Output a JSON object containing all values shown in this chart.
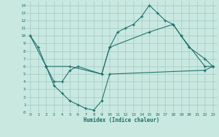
{
  "title": "",
  "xlabel": "Humidex (Indice chaleur)",
  "xlim": [
    -0.5,
    23.5
  ],
  "ylim": [
    0,
    14.5
  ],
  "xticks": [
    0,
    1,
    2,
    3,
    4,
    5,
    6,
    7,
    8,
    9,
    10,
    11,
    12,
    13,
    14,
    15,
    16,
    17,
    18,
    19,
    20,
    21,
    22,
    23
  ],
  "yticks": [
    0,
    1,
    2,
    3,
    4,
    5,
    6,
    7,
    8,
    9,
    10,
    11,
    12,
    13,
    14
  ],
  "bg_color": "#c8e8e0",
  "grid_color": "#a8ccc8",
  "line_color": "#1a6e6a",
  "line1": {
    "x": [
      0,
      1,
      2,
      3,
      4,
      5,
      6,
      9,
      10,
      11,
      12,
      13,
      14,
      15,
      16,
      17,
      18,
      19,
      20,
      22,
      23
    ],
    "y": [
      10,
      8.5,
      6,
      4,
      4,
      5.5,
      6,
      5,
      8.5,
      10.5,
      11,
      11.5,
      12.5,
      14,
      13,
      12,
      11.5,
      10,
      8.5,
      7,
      6
    ]
  },
  "line2": {
    "x": [
      0,
      2,
      5,
      9,
      10,
      15,
      18,
      19,
      22,
      23
    ],
    "y": [
      10,
      6,
      6,
      5,
      8.5,
      10.5,
      11.5,
      10,
      6,
      6
    ]
  },
  "line3": {
    "x": [
      2,
      3,
      4,
      5,
      6,
      7,
      8,
      9,
      10,
      22,
      23
    ],
    "y": [
      6,
      3.5,
      2.5,
      1.5,
      1.0,
      0.5,
      0.3,
      1.5,
      5,
      5.5,
      6
    ]
  }
}
